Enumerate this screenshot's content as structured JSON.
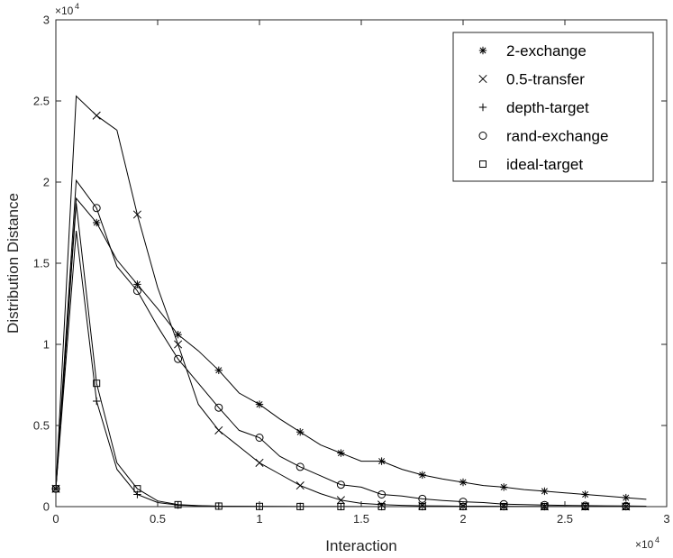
{
  "chart_data": {
    "type": "line",
    "xlabel": "Interaction",
    "ylabel": "Distribution Distance",
    "x_multiplier": "×10",
    "y_multiplier": "×10",
    "multiplier_exponent": "4",
    "xlim": [
      0,
      30000
    ],
    "ylim": [
      0,
      30000
    ],
    "x_ticks": [
      0,
      5000,
      10000,
      15000,
      20000,
      25000,
      30000
    ],
    "x_tick_labels": [
      "0",
      "0.5",
      "1",
      "1.5",
      "2",
      "2.5",
      "3"
    ],
    "y_ticks": [
      0,
      5000,
      10000,
      15000,
      20000,
      25000,
      30000
    ],
    "y_tick_labels": [
      "0",
      "0.5",
      "1",
      "1.5",
      "2",
      "2.5",
      "3"
    ],
    "grid": false,
    "legend_position": "top-right",
    "series": [
      {
        "name": "2-exchange",
        "marker": "asterisk",
        "line": [
          [
            0,
            1100
          ],
          [
            1000,
            19000
          ],
          [
            2000,
            17500
          ],
          [
            3000,
            15200
          ],
          [
            4000,
            13700
          ],
          [
            5000,
            12200
          ],
          [
            6000,
            10600
          ],
          [
            7000,
            9600
          ],
          [
            8000,
            8400
          ],
          [
            9000,
            7000
          ],
          [
            10000,
            6300
          ],
          [
            11000,
            5400
          ],
          [
            12000,
            4600
          ],
          [
            13000,
            3800
          ],
          [
            14000,
            3300
          ],
          [
            15000,
            2800
          ],
          [
            16000,
            2800
          ],
          [
            17000,
            2300
          ],
          [
            18000,
            1950
          ],
          [
            19000,
            1700
          ],
          [
            20000,
            1500
          ],
          [
            21000,
            1300
          ],
          [
            22000,
            1200
          ],
          [
            23000,
            1050
          ],
          [
            24000,
            950
          ],
          [
            25000,
            850
          ],
          [
            26000,
            750
          ],
          [
            27000,
            650
          ],
          [
            28000,
            550
          ],
          [
            29000,
            450
          ]
        ],
        "markers": [
          [
            0,
            1100
          ],
          [
            2000,
            17500
          ],
          [
            4000,
            13700
          ],
          [
            6000,
            10600
          ],
          [
            8000,
            8400
          ],
          [
            10000,
            6300
          ],
          [
            12000,
            4600
          ],
          [
            14000,
            3300
          ],
          [
            16000,
            2800
          ],
          [
            18000,
            1950
          ],
          [
            20000,
            1500
          ],
          [
            22000,
            1200
          ],
          [
            24000,
            950
          ],
          [
            26000,
            750
          ],
          [
            28000,
            550
          ]
        ]
      },
      {
        "name": "0.5-transfer",
        "marker": "x",
        "line": [
          [
            0,
            1100
          ],
          [
            1000,
            25300
          ],
          [
            2000,
            24100
          ],
          [
            3000,
            23200
          ],
          [
            4000,
            18000
          ],
          [
            5000,
            13500
          ],
          [
            6000,
            10000
          ],
          [
            7000,
            6300
          ],
          [
            8000,
            4700
          ],
          [
            9000,
            3700
          ],
          [
            10000,
            2700
          ],
          [
            11000,
            2000
          ],
          [
            12000,
            1300
          ],
          [
            13000,
            800
          ],
          [
            14000,
            400
          ],
          [
            15000,
            200
          ],
          [
            16000,
            120
          ],
          [
            17000,
            80
          ],
          [
            18000,
            50
          ],
          [
            19000,
            40
          ],
          [
            20000,
            30
          ],
          [
            21000,
            25
          ],
          [
            22000,
            20
          ],
          [
            23000,
            15
          ],
          [
            24000,
            12
          ],
          [
            25000,
            10
          ],
          [
            26000,
            8
          ],
          [
            27000,
            6
          ],
          [
            28000,
            5
          ],
          [
            29000,
            4
          ]
        ],
        "markers": [
          [
            0,
            1100
          ],
          [
            2000,
            24100
          ],
          [
            4000,
            18000
          ],
          [
            6000,
            10000
          ],
          [
            8000,
            4700
          ],
          [
            10000,
            2700
          ],
          [
            12000,
            1300
          ],
          [
            14000,
            400
          ],
          [
            16000,
            120
          ],
          [
            18000,
            50
          ],
          [
            20000,
            30
          ],
          [
            22000,
            20
          ],
          [
            24000,
            12
          ],
          [
            26000,
            8
          ],
          [
            28000,
            5
          ]
        ]
      },
      {
        "name": "depth-target",
        "marker": "plus",
        "line": [
          [
            0,
            1100
          ],
          [
            1000,
            17000
          ],
          [
            2000,
            6500
          ],
          [
            3000,
            2300
          ],
          [
            4000,
            750
          ],
          [
            5000,
            250
          ],
          [
            6000,
            100
          ],
          [
            7000,
            50
          ],
          [
            8000,
            30
          ],
          [
            9000,
            20
          ],
          [
            10000,
            10
          ],
          [
            12000,
            5
          ],
          [
            14000,
            3
          ],
          [
            16000,
            2
          ],
          [
            18000,
            1
          ],
          [
            20000,
            1
          ],
          [
            22000,
            0
          ],
          [
            24000,
            0
          ],
          [
            26000,
            0
          ],
          [
            28000,
            0
          ],
          [
            29000,
            0
          ]
        ],
        "markers": [
          [
            0,
            1100
          ],
          [
            2000,
            6500
          ],
          [
            4000,
            750
          ],
          [
            6000,
            100
          ],
          [
            8000,
            30
          ],
          [
            10000,
            10
          ],
          [
            12000,
            5
          ],
          [
            14000,
            3
          ],
          [
            16000,
            2
          ],
          [
            18000,
            1
          ],
          [
            20000,
            1
          ],
          [
            22000,
            0
          ],
          [
            24000,
            0
          ],
          [
            26000,
            0
          ],
          [
            28000,
            0
          ]
        ]
      },
      {
        "name": "rand-exchange",
        "marker": "circle",
        "line": [
          [
            0,
            1100
          ],
          [
            1000,
            20100
          ],
          [
            2000,
            18400
          ],
          [
            3000,
            14800
          ],
          [
            4000,
            13300
          ],
          [
            5000,
            11100
          ],
          [
            6000,
            9100
          ],
          [
            7000,
            7600
          ],
          [
            8000,
            6100
          ],
          [
            9000,
            4700
          ],
          [
            10000,
            4250
          ],
          [
            11000,
            3100
          ],
          [
            12000,
            2450
          ],
          [
            13000,
            1900
          ],
          [
            14000,
            1350
          ],
          [
            15000,
            1200
          ],
          [
            16000,
            750
          ],
          [
            17000,
            650
          ],
          [
            18000,
            480
          ],
          [
            19000,
            380
          ],
          [
            20000,
            300
          ],
          [
            21000,
            250
          ],
          [
            22000,
            150
          ],
          [
            23000,
            120
          ],
          [
            24000,
            100
          ],
          [
            25000,
            80
          ],
          [
            26000,
            60
          ],
          [
            27000,
            50
          ],
          [
            28000,
            40
          ],
          [
            29000,
            30
          ]
        ],
        "markers": [
          [
            0,
            1100
          ],
          [
            2000,
            18400
          ],
          [
            4000,
            13300
          ],
          [
            6000,
            9100
          ],
          [
            8000,
            6100
          ],
          [
            10000,
            4250
          ],
          [
            12000,
            2450
          ],
          [
            14000,
            1350
          ],
          [
            16000,
            750
          ],
          [
            18000,
            480
          ],
          [
            20000,
            300
          ],
          [
            22000,
            150
          ],
          [
            24000,
            100
          ],
          [
            26000,
            60
          ],
          [
            28000,
            40
          ]
        ]
      },
      {
        "name": "ideal-target",
        "marker": "square",
        "line": [
          [
            0,
            1100
          ],
          [
            1000,
            18700
          ],
          [
            2000,
            7600
          ],
          [
            3000,
            2700
          ],
          [
            4000,
            1100
          ],
          [
            5000,
            350
          ],
          [
            6000,
            120
          ],
          [
            7000,
            60
          ],
          [
            8000,
            30
          ],
          [
            9000,
            20
          ],
          [
            10000,
            12
          ],
          [
            12000,
            6
          ],
          [
            14000,
            4
          ],
          [
            16000,
            2
          ],
          [
            18000,
            1
          ],
          [
            20000,
            1
          ],
          [
            22000,
            0
          ],
          [
            24000,
            0
          ],
          [
            26000,
            0
          ],
          [
            28000,
            0
          ],
          [
            29000,
            0
          ]
        ],
        "markers": [
          [
            0,
            1100
          ],
          [
            2000,
            7600
          ],
          [
            4000,
            1100
          ],
          [
            6000,
            120
          ],
          [
            8000,
            30
          ],
          [
            10000,
            12
          ],
          [
            12000,
            6
          ],
          [
            14000,
            4
          ],
          [
            16000,
            2
          ],
          [
            18000,
            1
          ],
          [
            20000,
            1
          ],
          [
            22000,
            0
          ],
          [
            24000,
            0
          ],
          [
            26000,
            0
          ],
          [
            28000,
            0
          ]
        ]
      }
    ]
  }
}
